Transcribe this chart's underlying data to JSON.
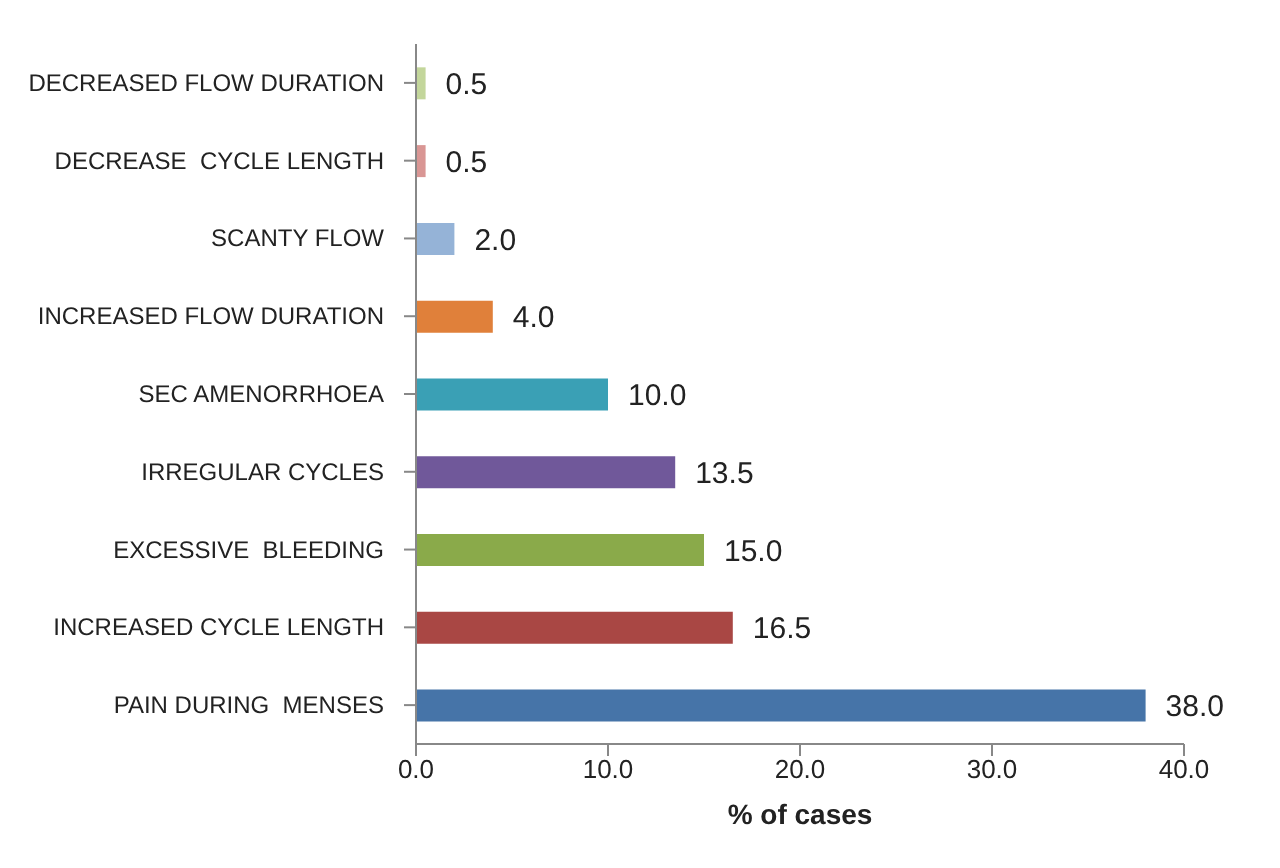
{
  "chart_data": {
    "type": "bar",
    "orientation": "horizontal",
    "xlabel": "% of cases",
    "categories": [
      "DECREASED FLOW DURATION",
      "DECREASE  CYCLE LENGTH",
      "SCANTY FLOW",
      "INCREASED FLOW DURATION",
      "SEC AMENORRHOEA",
      "IRREGULAR CYCLES",
      "EXCESSIVE  BLEEDING",
      "INCREASED CYCLE LENGTH",
      "PAIN DURING  MENSES"
    ],
    "values": [
      0.5,
      0.5,
      2.0,
      4.0,
      10.0,
      13.5,
      15.0,
      16.5,
      38.0
    ],
    "value_labels": [
      "0.5",
      "0.5",
      "2.0",
      "4.0",
      "10.0",
      "13.5",
      "15.0",
      "16.5",
      "38.0"
    ],
    "colors": [
      "#c3d69b",
      "#d99694",
      "#95b3d7",
      "#e0803a",
      "#3aa0b5",
      "#70589a",
      "#8aaa4a",
      "#a94744",
      "#4674a8"
    ],
    "xlim": [
      0,
      40
    ],
    "xticks": [
      {
        "value": 0,
        "label": "0.0"
      },
      {
        "value": 10,
        "label": "10.0"
      },
      {
        "value": 20,
        "label": "20.0"
      },
      {
        "value": 30,
        "label": "30.0"
      },
      {
        "value": 40,
        "label": "40.0"
      }
    ],
    "grid": false,
    "legend": false
  }
}
